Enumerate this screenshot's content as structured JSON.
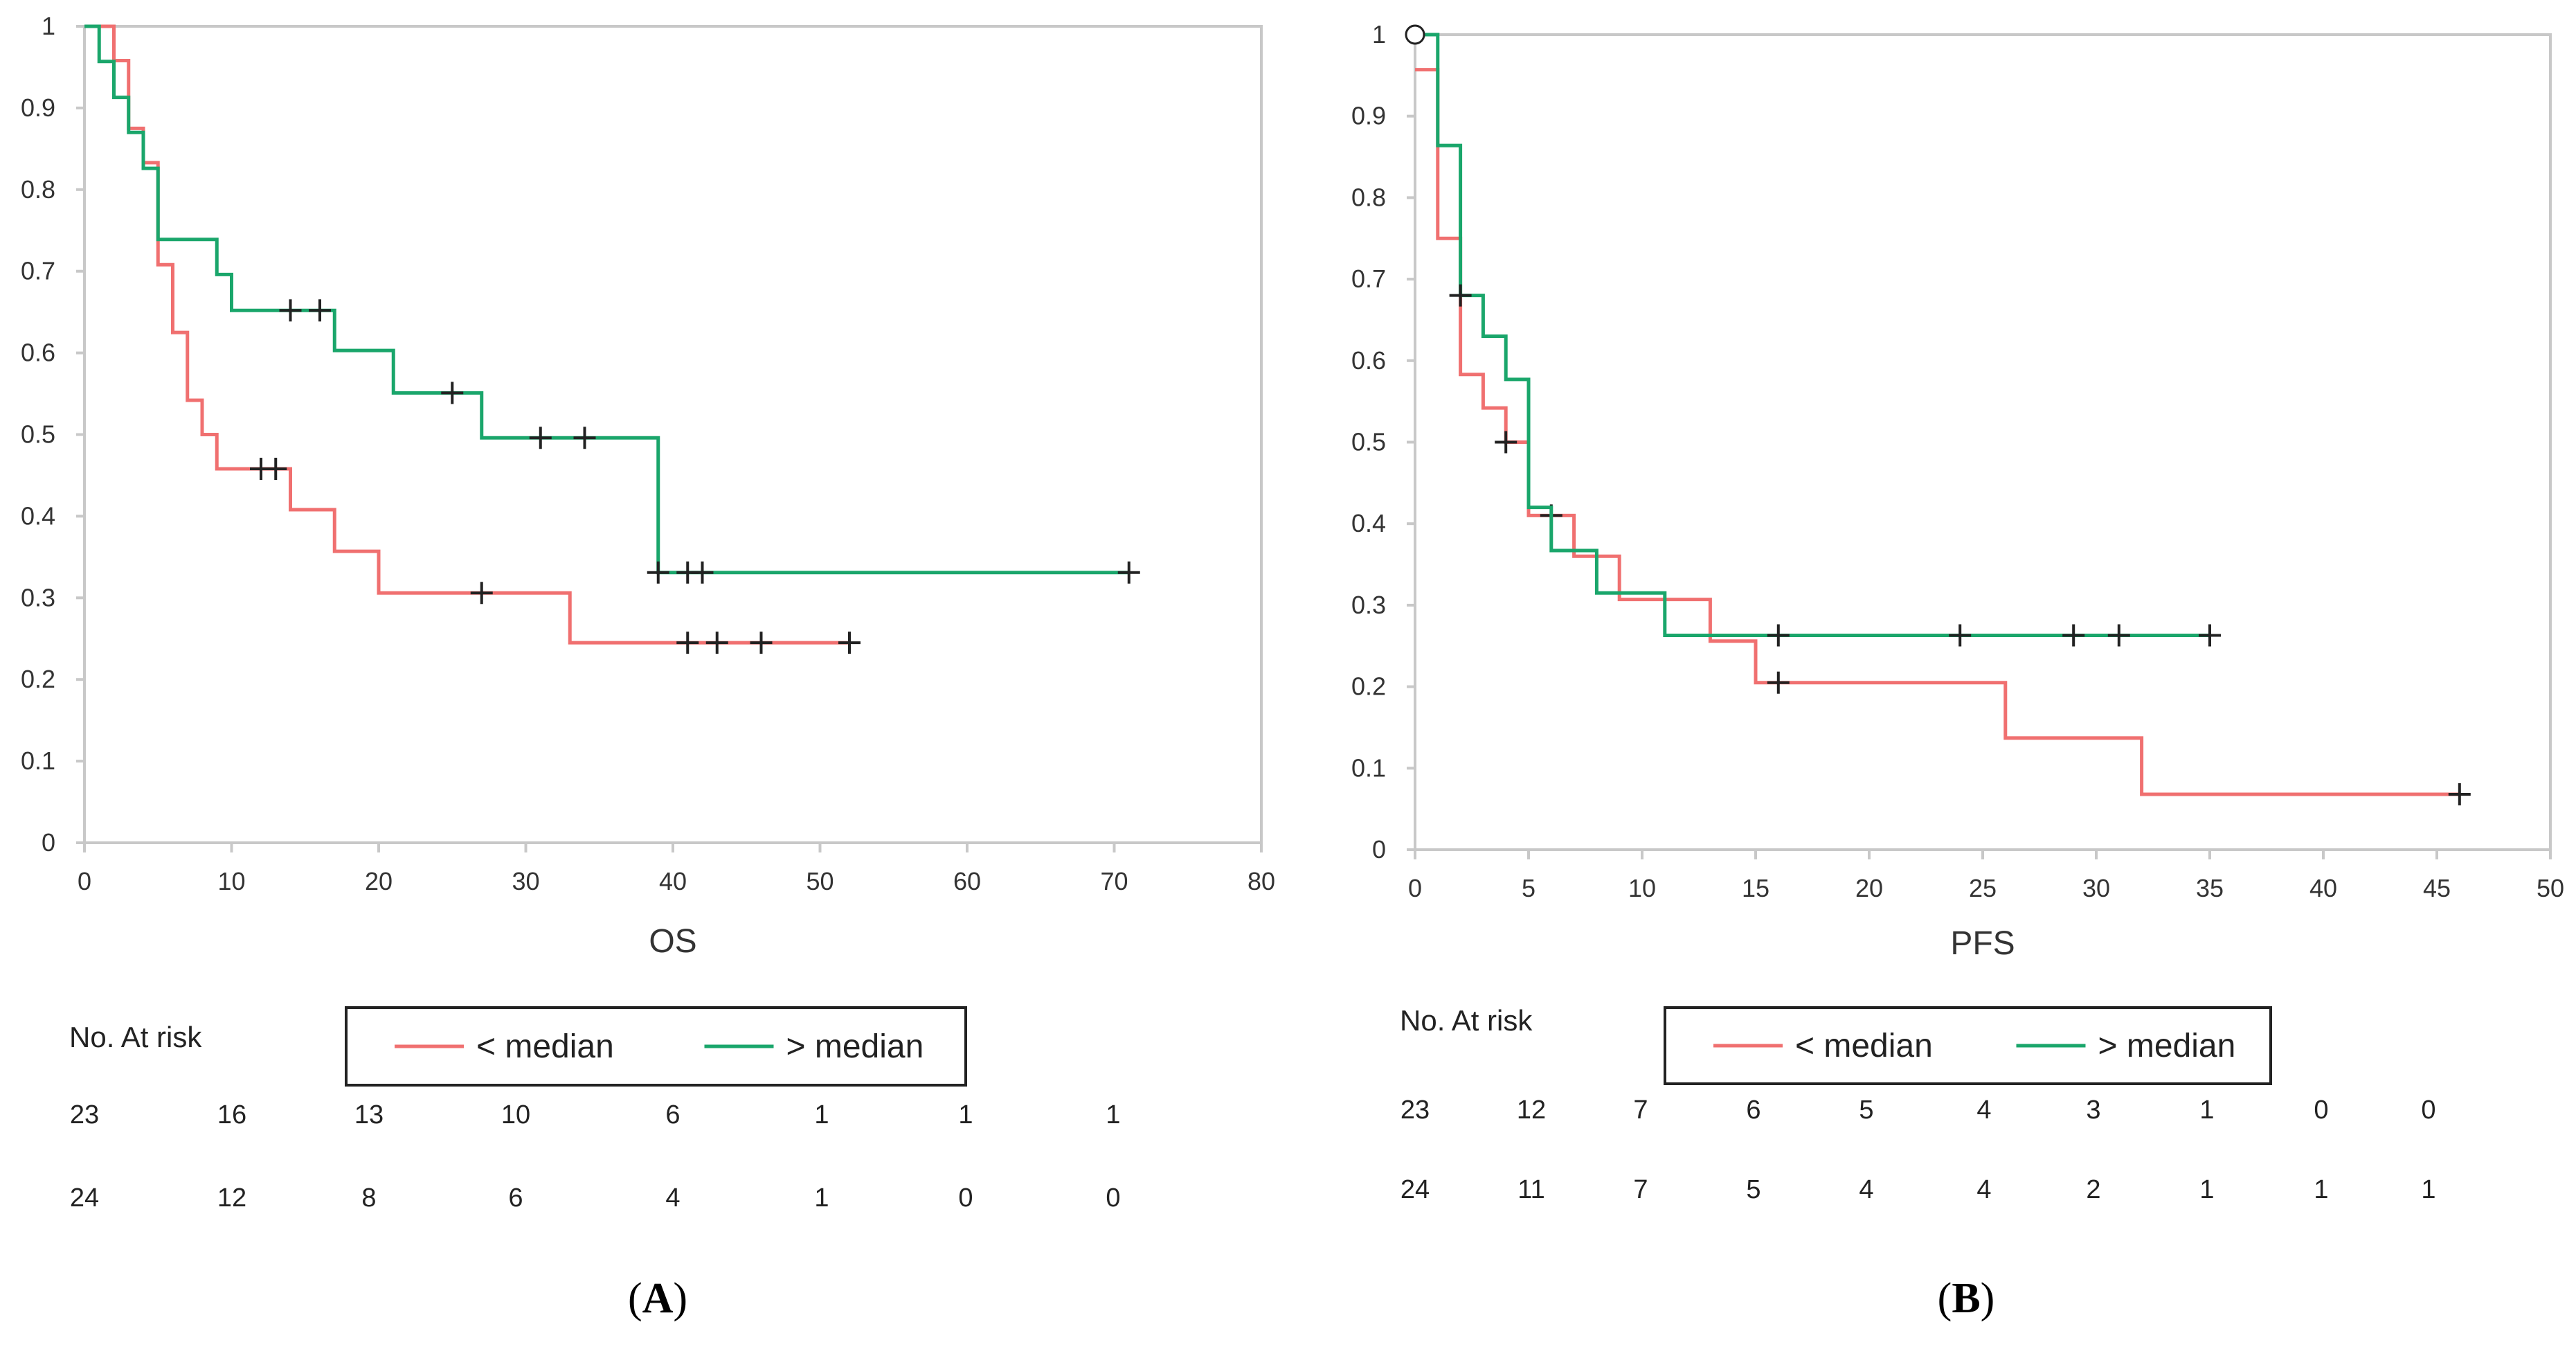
{
  "chart_data": [
    {
      "panel": "A",
      "type": "line",
      "subtype": "kaplan-meier-step",
      "xlabel": "OS",
      "ylabel": "",
      "xlim": [
        0,
        80
      ],
      "ylim": [
        0,
        1
      ],
      "x_ticks": [
        "0",
        "10",
        "20",
        "30",
        "40",
        "50",
        "60",
        "70",
        "80"
      ],
      "y_ticks": [
        "0",
        "0.1",
        "0.2",
        "0.3",
        "0.4",
        "0.5",
        "0.6",
        "0.7",
        "0.8",
        "0.9",
        "1"
      ],
      "x_tick_values": [
        0,
        10,
        20,
        30,
        40,
        50,
        60,
        70,
        80
      ],
      "y_tick_values": [
        0,
        0.1,
        0.2,
        0.3,
        0.4,
        0.5,
        0.6,
        0.7,
        0.8,
        0.9,
        1
      ],
      "legend": [
        "< median",
        "> median"
      ],
      "legend_placement": "below",
      "series": [
        {
          "name": "< median",
          "color": "#f07070",
          "steps": [
            [
              0,
              1
            ],
            [
              2,
              0.958
            ],
            [
              3,
              0.875
            ],
            [
              4,
              0.833
            ],
            [
              5,
              0.708
            ],
            [
              6,
              0.625
            ],
            [
              7,
              0.542
            ],
            [
              8,
              0.5
            ],
            [
              9,
              0.458
            ],
            [
              14,
              0.408
            ],
            [
              17,
              0.357
            ],
            [
              20,
              0.306
            ],
            [
              33,
              0.245
            ],
            [
              52,
              0.245
            ]
          ],
          "censored": [
            [
              12,
              0.458
            ],
            [
              13,
              0.458
            ],
            [
              27,
              0.306
            ],
            [
              41,
              0.245
            ],
            [
              43,
              0.245
            ],
            [
              46,
              0.245
            ],
            [
              52,
              0.245
            ]
          ]
        },
        {
          "name": "> median",
          "color": "#1aa66b",
          "steps": [
            [
              0,
              1
            ],
            [
              1,
              0.957
            ],
            [
              2,
              0.913
            ],
            [
              3,
              0.87
            ],
            [
              4,
              0.826
            ],
            [
              5,
              0.739
            ],
            [
              9,
              0.696
            ],
            [
              10,
              0.652
            ],
            [
              17,
              0.603
            ],
            [
              21,
              0.551
            ],
            [
              27,
              0.496
            ],
            [
              39,
              0.331
            ],
            [
              71,
              0.331
            ]
          ],
          "censored": [
            [
              14,
              0.652
            ],
            [
              16,
              0.652
            ],
            [
              25,
              0.551
            ],
            [
              31,
              0.496
            ],
            [
              34,
              0.496
            ],
            [
              39,
              0.331
            ],
            [
              41,
              0.331
            ],
            [
              42,
              0.331
            ],
            [
              71,
              0.331
            ]
          ]
        }
      ],
      "at_risk_title": "No. At risk",
      "at_risk": [
        [
          "23",
          "16",
          "13",
          "10",
          "6",
          "1",
          "1",
          "1"
        ],
        [
          "24",
          "12",
          "8",
          "6",
          "4",
          "1",
          "0",
          "0"
        ]
      ]
    },
    {
      "panel": "B",
      "type": "line",
      "subtype": "kaplan-meier-step",
      "xlabel": "PFS",
      "ylabel": "",
      "xlim": [
        0,
        50
      ],
      "ylim": [
        0,
        1
      ],
      "x_ticks": [
        "0",
        "5",
        "10",
        "15",
        "20",
        "25",
        "30",
        "35",
        "40",
        "45",
        "50"
      ],
      "y_ticks": [
        "0",
        "0.1",
        "0.2",
        "0.3",
        "0.4",
        "0.5",
        "0.6",
        "0.7",
        "0.8",
        "0.9",
        "1"
      ],
      "x_tick_values": [
        0,
        5,
        10,
        15,
        20,
        25,
        30,
        35,
        40,
        45,
        50
      ],
      "y_tick_values": [
        0,
        0.1,
        0.2,
        0.3,
        0.4,
        0.5,
        0.6,
        0.7,
        0.8,
        0.9,
        1
      ],
      "legend": [
        "< median",
        "> median"
      ],
      "legend_placement": "below",
      "start_marker": [
        0,
        1
      ],
      "series": [
        {
          "name": "< median",
          "color": "#f07070",
          "steps": [
            [
              0,
              0.957
            ],
            [
              1,
              0.75
            ],
            [
              2,
              0.583
            ],
            [
              3,
              0.542
            ],
            [
              4,
              0.5
            ],
            [
              5,
              0.41
            ],
            [
              7,
              0.36
            ],
            [
              9,
              0.307
            ],
            [
              13,
              0.256
            ],
            [
              15,
              0.205
            ],
            [
              26,
              0.137
            ],
            [
              32,
              0.068
            ],
            [
              46,
              0.068
            ]
          ],
          "censored": [
            [
              4,
              0.5
            ],
            [
              6,
              0.41
            ],
            [
              16,
              0.205
            ],
            [
              46,
              0.068
            ]
          ]
        },
        {
          "name": "> median",
          "color": "#1aa66b",
          "steps": [
            [
              0,
              1
            ],
            [
              1,
              0.864
            ],
            [
              2,
              0.68
            ],
            [
              3,
              0.63
            ],
            [
              4,
              0.577
            ],
            [
              5,
              0.42
            ],
            [
              6,
              0.367
            ],
            [
              8,
              0.315
            ],
            [
              11,
              0.263
            ],
            [
              35,
              0.263
            ]
          ],
          "censored": [
            [
              2,
              0.68
            ],
            [
              16,
              0.263
            ],
            [
              24,
              0.263
            ],
            [
              29,
              0.263
            ],
            [
              31,
              0.263
            ],
            [
              35,
              0.263
            ]
          ]
        }
      ],
      "at_risk_title": "No. At risk",
      "at_risk": [
        [
          "23",
          "12",
          "7",
          "6",
          "5",
          "4",
          "3",
          "1",
          "0",
          "0"
        ],
        [
          "24",
          "11",
          "7",
          "5",
          "4",
          "4",
          "2",
          "1",
          "1",
          "1"
        ]
      ]
    }
  ],
  "labels": {
    "a": "A",
    "b": "B"
  }
}
